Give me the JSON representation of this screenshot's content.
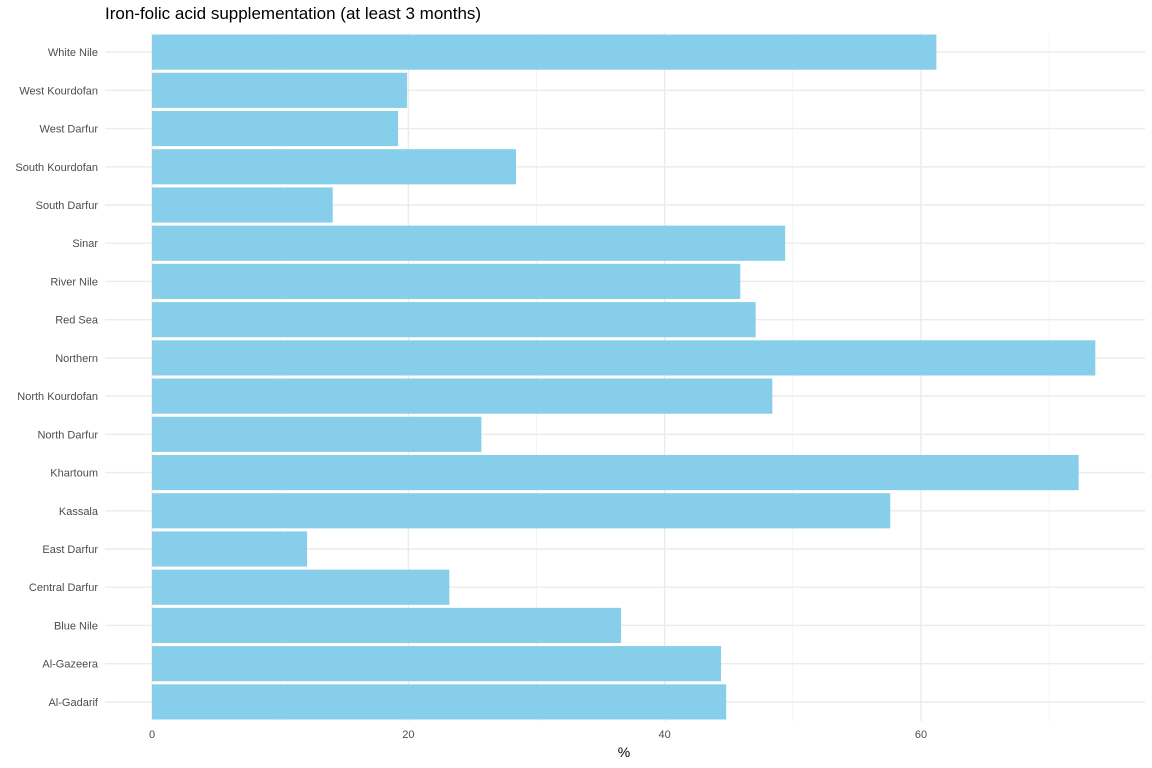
{
  "chart_data": {
    "type": "bar",
    "orientation": "horizontal",
    "title": "Iron-folic acid supplementation (at least 3 months)",
    "xlabel": "%",
    "ylabel": "",
    "xlim": [
      0,
      75
    ],
    "x_ticks": [
      0,
      20,
      40,
      60
    ],
    "grid": true,
    "bar_color": "#87CEEB",
    "categories": [
      "Al-Gadarif",
      "Al-Gazeera",
      "Blue Nile",
      "Central Darfur",
      "East Darfur",
      "Kassala",
      "Khartoum",
      "North Darfur",
      "North Kourdofan",
      "Northern",
      "Red Sea",
      "River Nile",
      "Sinar",
      "South Darfur",
      "South Kourdofan",
      "West Darfur",
      "West Kourdofan",
      "White Nile"
    ],
    "values": [
      44.8,
      44.4,
      36.6,
      23.2,
      12.1,
      57.6,
      72.3,
      25.7,
      48.4,
      73.6,
      47.1,
      45.9,
      49.4,
      14.1,
      28.4,
      19.2,
      19.9,
      61.2
    ]
  }
}
